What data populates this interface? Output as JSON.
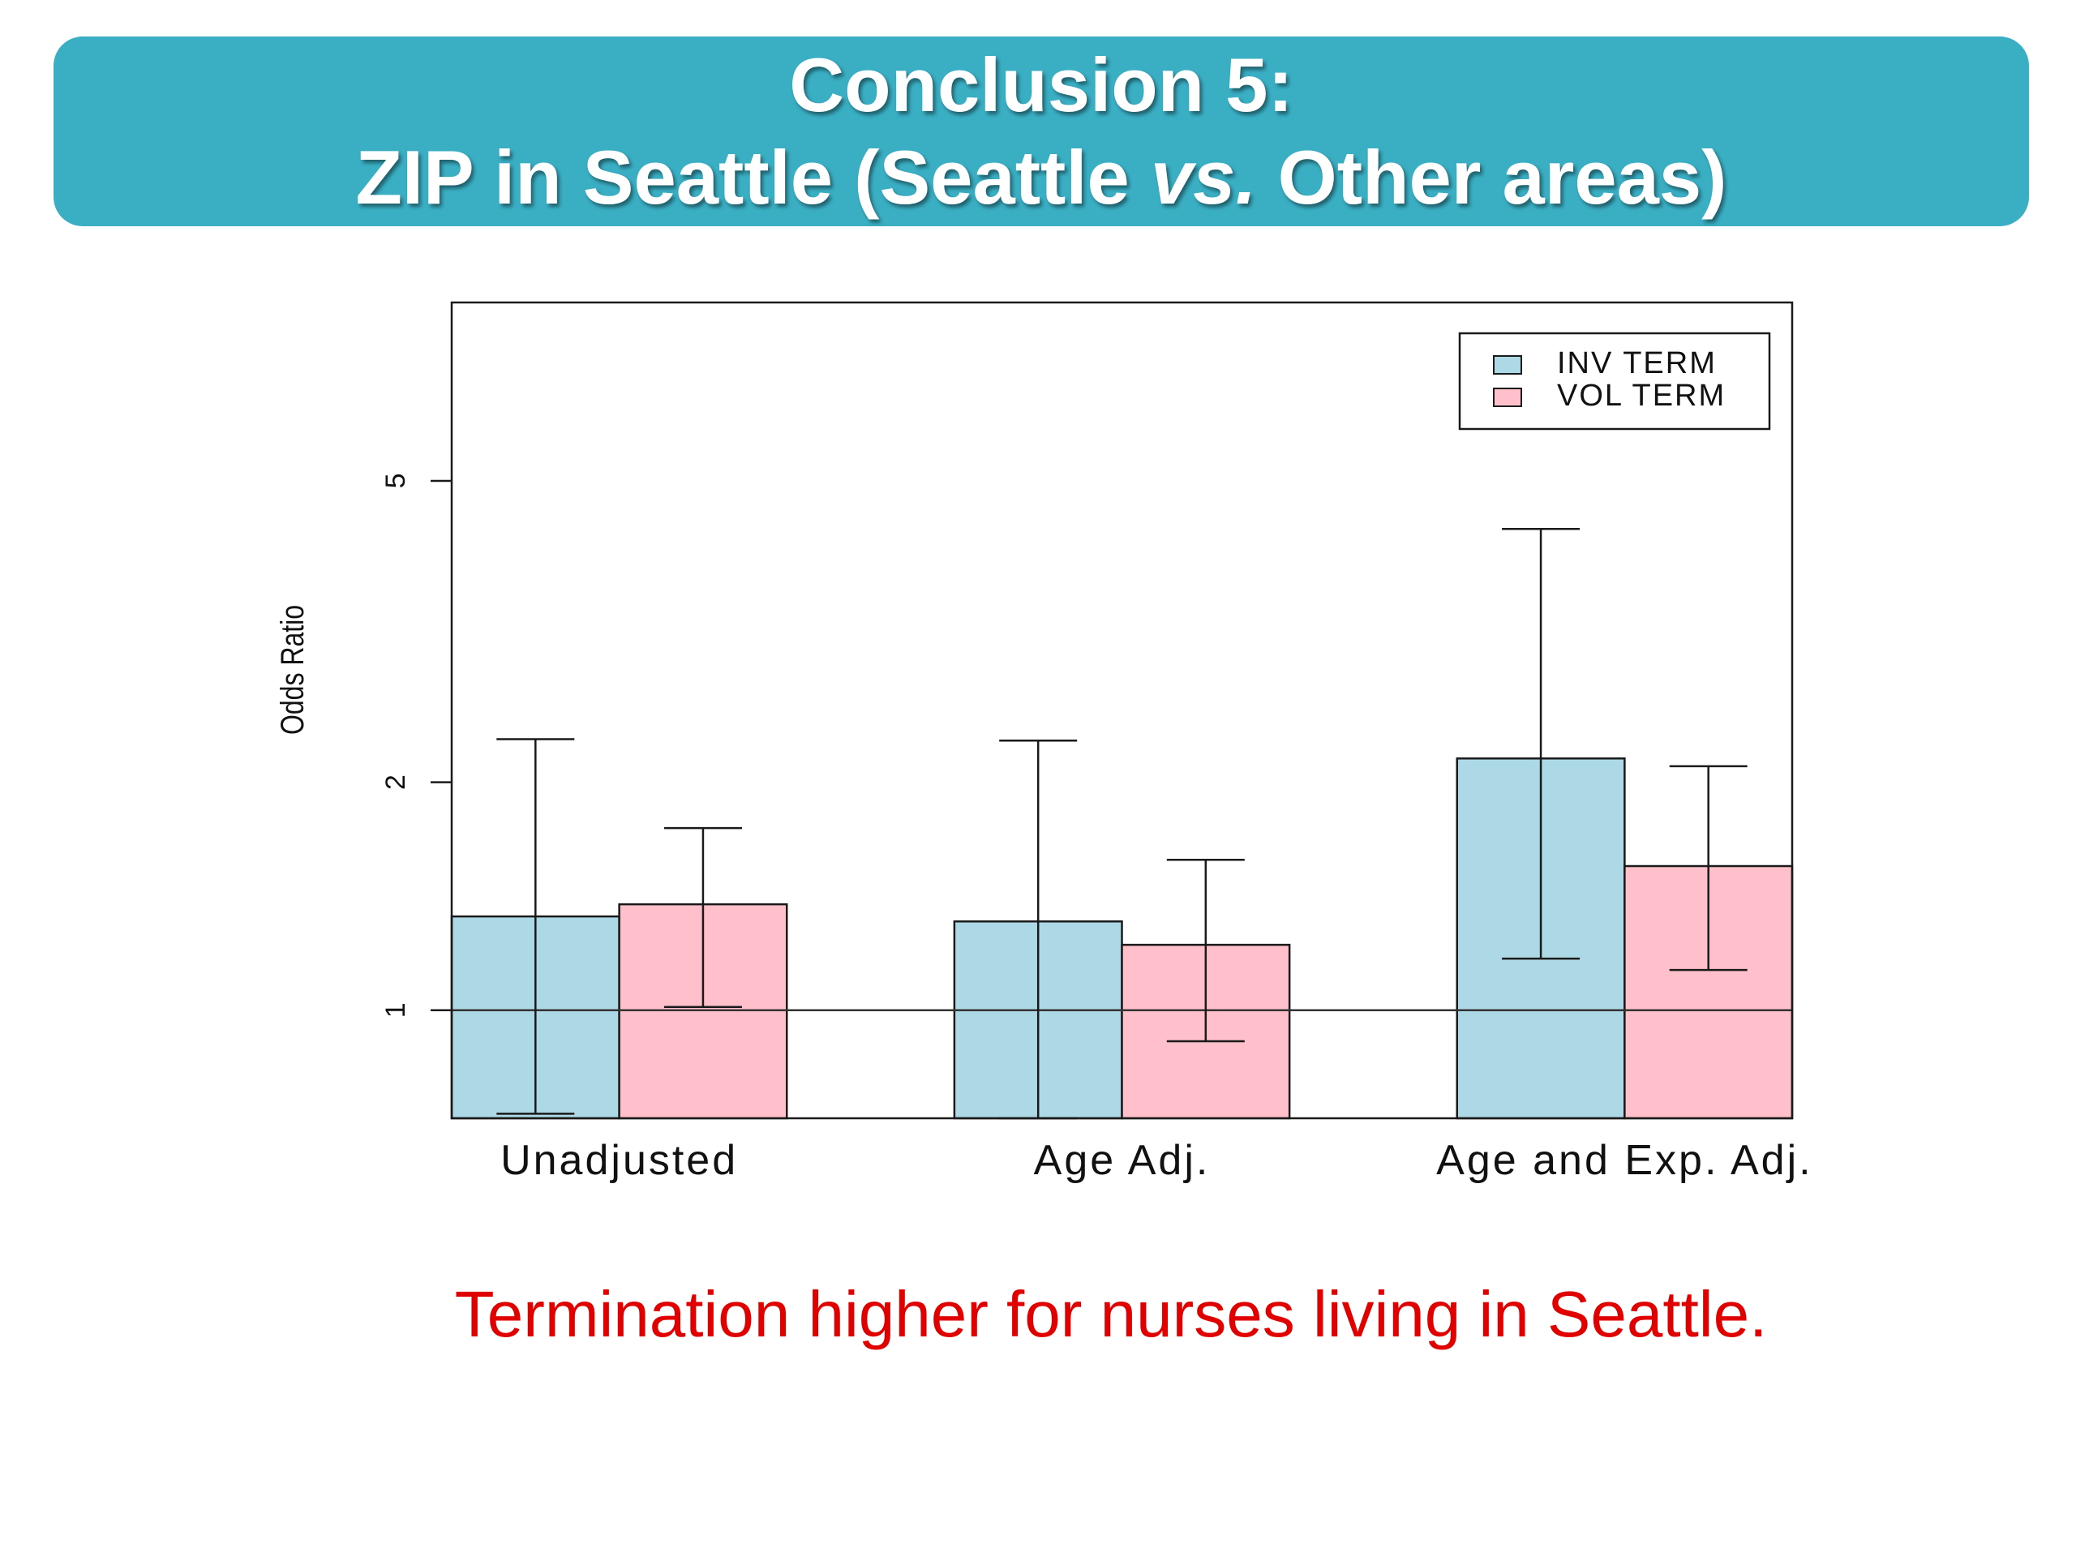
{
  "slide": {
    "title_line1": "Conclusion 5:",
    "title_line2_a": "ZIP in Seattle (Seattle ",
    "title_line2_em": "vs.",
    "title_line2_b": " Other areas)",
    "caption": "Termination higher for nurses living in Seattle.",
    "colors": {
      "banner": "#3aafc4",
      "caption": "#e00000"
    }
  },
  "chart_data": {
    "type": "bar",
    "title": "",
    "xlabel": "",
    "ylabel": "Odds Ratio",
    "y_scale": "log",
    "ylim": [
      0.72,
      8.6
    ],
    "yticks": [
      1,
      2,
      5
    ],
    "reference_line": 1,
    "grid": false,
    "legend_position": "top-right",
    "categories": [
      "Unadjusted",
      "Age Adj.",
      "Age and Exp. Adj."
    ],
    "series": [
      {
        "name": "INV TERM",
        "color": "#add8e6",
        "values": [
          1.33,
          1.31,
          2.15
        ],
        "ci_low": [
          0.73,
          0.72,
          1.17
        ],
        "ci_high": [
          2.28,
          2.27,
          4.32
        ]
      },
      {
        "name": "VOL TERM",
        "color": "#ffc0cb",
        "values": [
          1.38,
          1.22,
          1.55
        ],
        "ci_low": [
          1.01,
          0.91,
          1.13
        ],
        "ci_high": [
          1.74,
          1.58,
          2.1
        ]
      }
    ]
  }
}
